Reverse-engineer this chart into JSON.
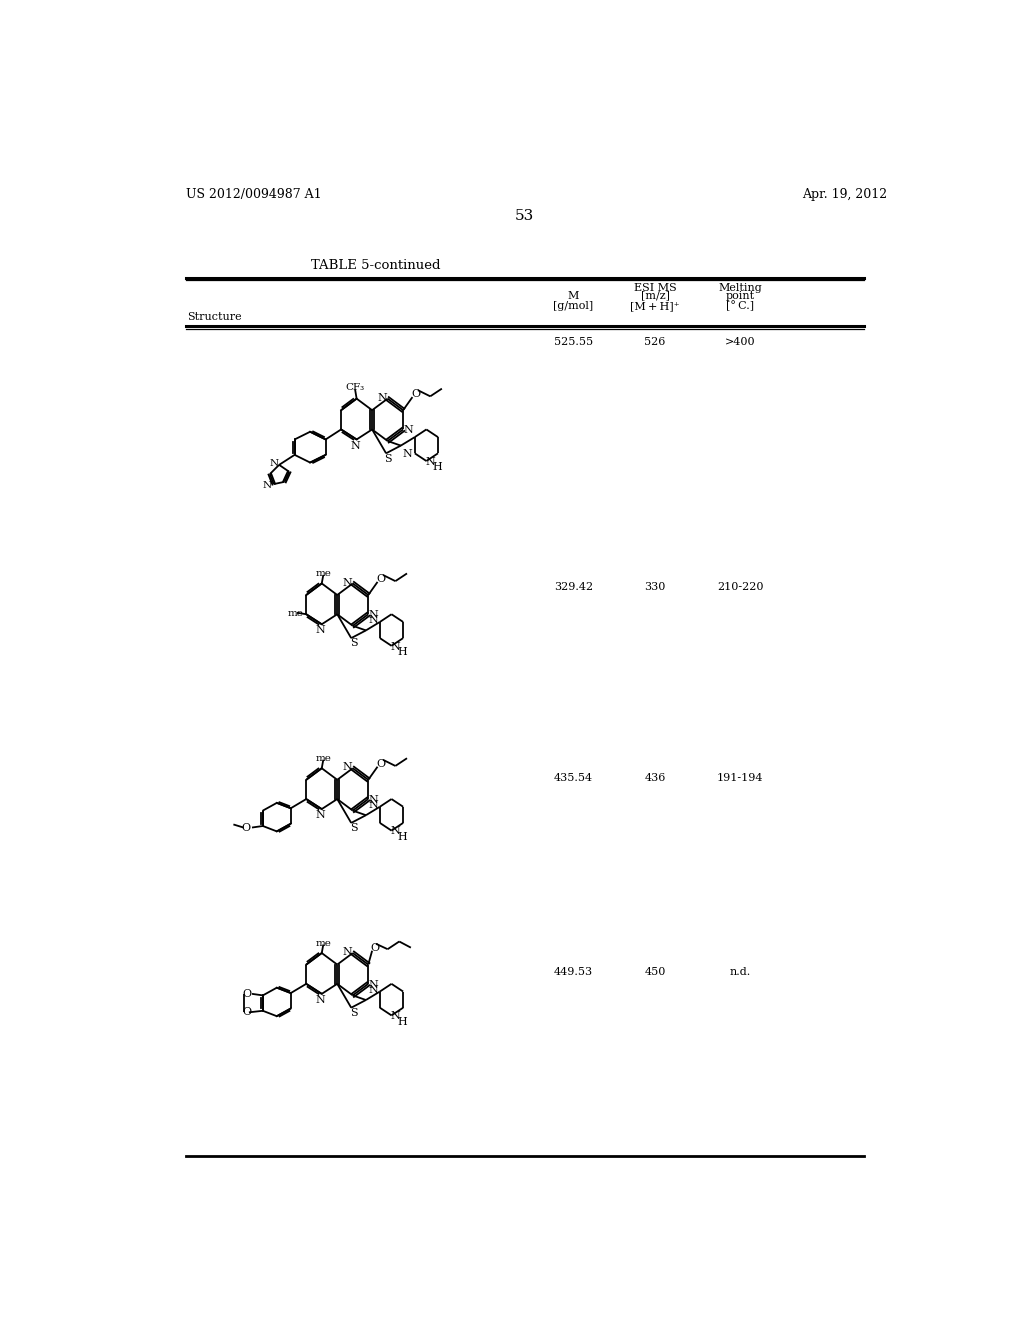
{
  "background_color": "#ffffff",
  "page_number": "53",
  "header_left": "US 2012/0094987 A1",
  "header_right": "Apr. 19, 2012",
  "table_title": "TABLE 5-continued",
  "rows": [
    {
      "m": "525.55",
      "mz": "526",
      "mp": ">400"
    },
    {
      "m": "329.42",
      "mz": "330",
      "mp": "210-220"
    },
    {
      "m": "435.54",
      "mz": "436",
      "mp": "191-194"
    },
    {
      "m": "449.53",
      "mz": "450",
      "mp": "n.d."
    }
  ]
}
